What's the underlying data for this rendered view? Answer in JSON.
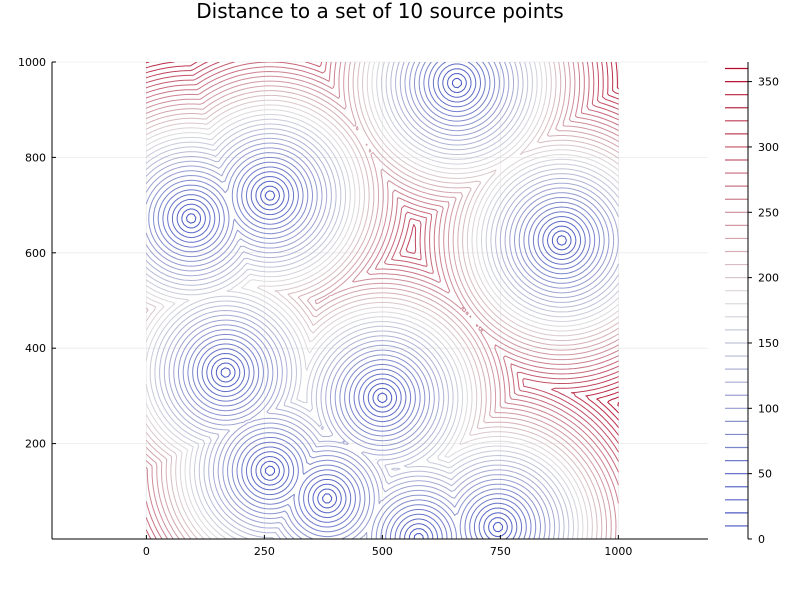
{
  "chart_data": {
    "type": "contour",
    "title": "Distance to a set of 10 source points",
    "xlabel": "",
    "ylabel": "",
    "xlim": [
      -200,
      1190
    ],
    "ylim": [
      0,
      1000
    ],
    "grid": true,
    "legend": "colorbar-right",
    "x_ticks": [
      "0",
      "250",
      "500",
      "750",
      "1000"
    ],
    "x_tick_values": [
      0,
      250,
      500,
      750,
      1000
    ],
    "y_ticks": [
      "200",
      "400",
      "600",
      "800",
      "1000"
    ],
    "y_tick_values": [
      200,
      400,
      600,
      800,
      1000
    ],
    "data_extent": {
      "x": [
        0,
        1000
      ],
      "y": [
        0,
        1000
      ]
    },
    "sources": [
      {
        "x": 95,
        "y": 672
      },
      {
        "x": 262,
        "y": 720
      },
      {
        "x": 658,
        "y": 956
      },
      {
        "x": 880,
        "y": 626
      },
      {
        "x": 168,
        "y": 349
      },
      {
        "x": 500,
        "y": 296
      },
      {
        "x": 262,
        "y": 143
      },
      {
        "x": 383,
        "y": 85
      },
      {
        "x": 577,
        "y": 2
      },
      {
        "x": 745,
        "y": 25
      }
    ],
    "contour_levels": {
      "min": 10,
      "max": 360,
      "step": 10
    },
    "colorbar": {
      "range": [
        0,
        365
      ],
      "ticks": [
        "0",
        "50",
        "100",
        "150",
        "200",
        "250",
        "300",
        "350"
      ],
      "tick_values": [
        0,
        50,
        100,
        150,
        200,
        250,
        300,
        350
      ]
    },
    "colormap": [
      "#3b4cc0",
      "#dddddd",
      "#b40426"
    ]
  }
}
